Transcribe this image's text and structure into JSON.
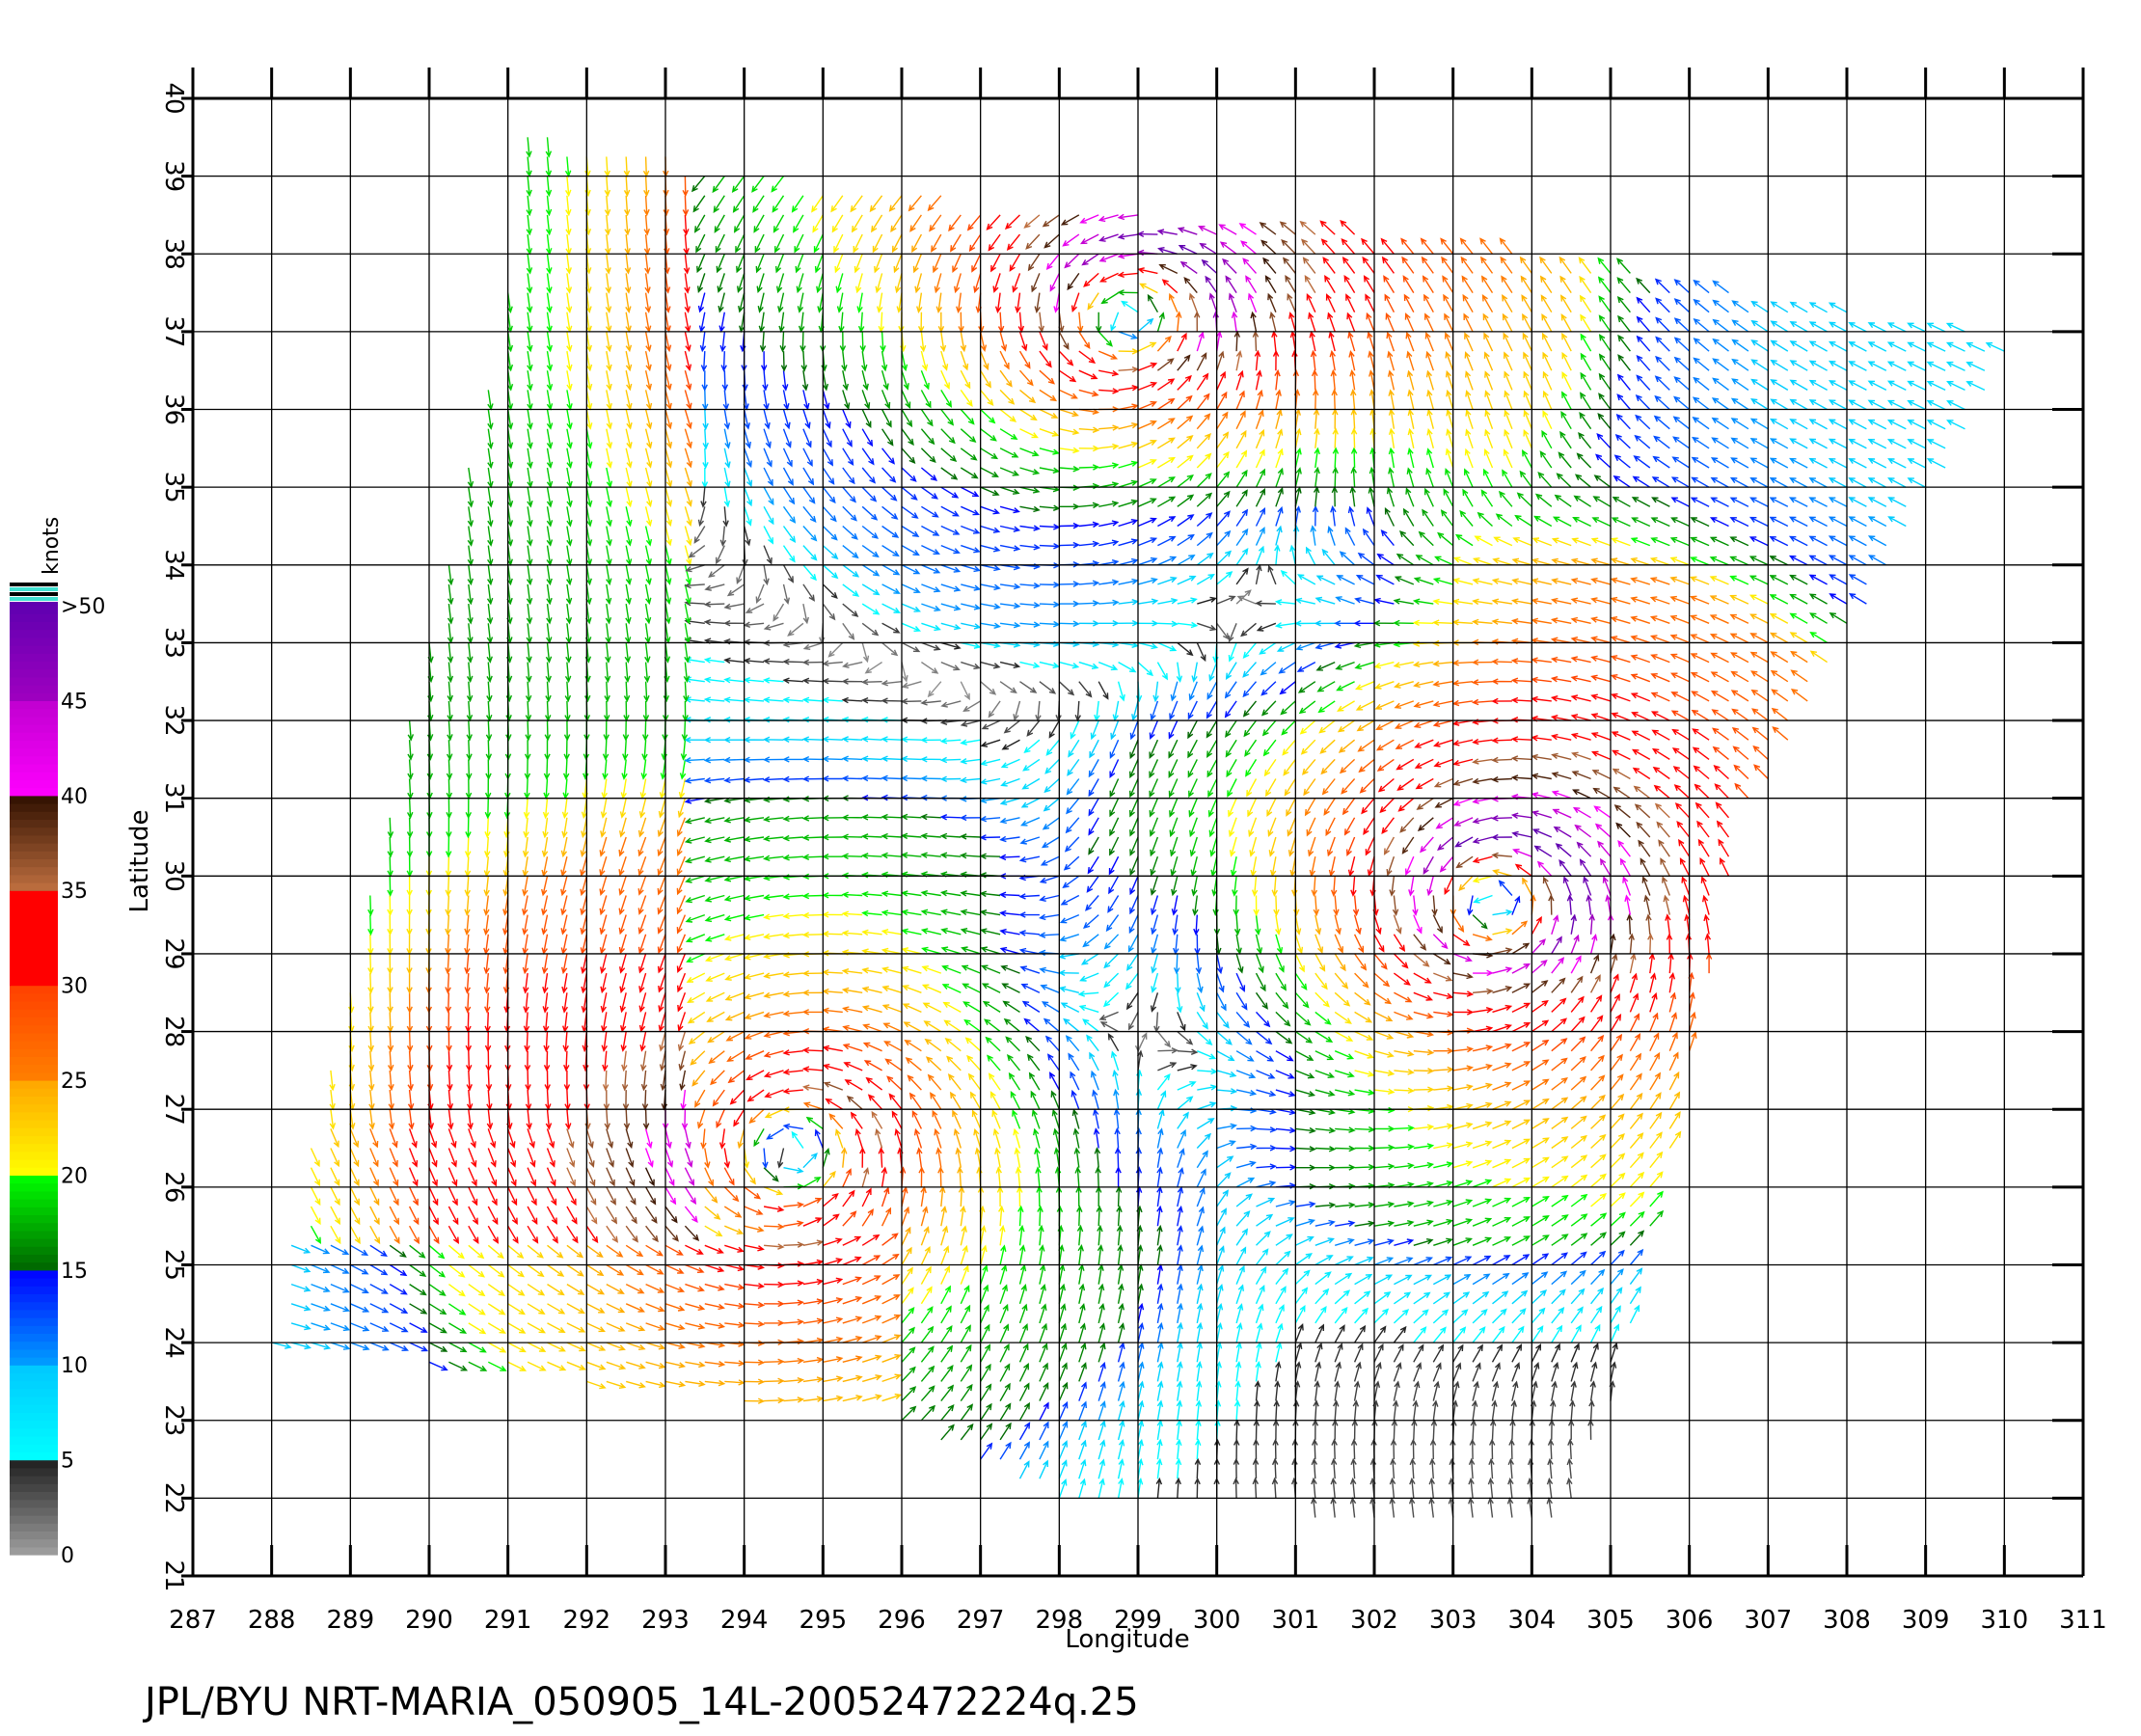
{
  "caption": "JPL/BYU  NRT-MARIA_050905_14L-20052472224q.25",
  "chart_data": {
    "type": "vector-field",
    "xlabel": "Longitude",
    "ylabel": "Latitude",
    "xlim": [
      287,
      311
    ],
    "ylim": [
      21,
      40
    ],
    "x_ticks": [
      "287",
      "288",
      "289",
      "290",
      "291",
      "292",
      "293",
      "294",
      "295",
      "296",
      "297",
      "298",
      "299",
      "300",
      "301",
      "302",
      "303",
      "304",
      "305",
      "306",
      "307",
      "308",
      "309",
      "310",
      "311"
    ],
    "y_ticks": [
      "21",
      "22",
      "23",
      "24",
      "25",
      "26",
      "27",
      "28",
      "29",
      "30",
      "31",
      "32",
      "33",
      "34",
      "35",
      "36",
      "37",
      "38",
      "39",
      "40"
    ],
    "grid": true,
    "swath_corners": [
      [
        291.1,
        39.6
      ],
      [
        295.2,
        38.9
      ],
      [
        303.3,
        38.1
      ],
      [
        310.2,
        36.9
      ],
      [
        306.7,
        30.7
      ],
      [
        305.0,
        23.1
      ],
      [
        304.3,
        21.5
      ],
      [
        298.0,
        22.0
      ],
      [
        296.0,
        23.0
      ],
      [
        288.0,
        24.0
      ],
      [
        288.5,
        26.5
      ],
      [
        291.0,
        37.5
      ]
    ],
    "storm_centers": [
      {
        "lon": 303.6,
        "lat": 29.7,
        "max_knots": 50
      },
      {
        "lon": 294.7,
        "lat": 26.5,
        "max_knots": 35
      },
      {
        "lon": 299.0,
        "lat": 37.3,
        "max_knots": 45
      }
    ],
    "colorbar": {
      "title": "knots",
      "labels": [
        "0",
        "5",
        "10",
        "15",
        "20",
        "25",
        "30",
        "35",
        "40",
        "45",
        ">50"
      ],
      "bands": [
        {
          "from": 0,
          "to": 5,
          "colors": [
            "#a0a0a0",
            "#202020"
          ]
        },
        {
          "from": 5,
          "to": 10,
          "colors": [
            "#00ffff",
            "#00c8ff"
          ]
        },
        {
          "from": 10,
          "to": 15,
          "colors": [
            "#00a0ff",
            "#0000ff"
          ]
        },
        {
          "from": 15,
          "to": 20,
          "colors": [
            "#006400",
            "#00ff00"
          ]
        },
        {
          "from": 20,
          "to": 25,
          "colors": [
            "#ffff00",
            "#ffa500"
          ]
        },
        {
          "from": 25,
          "to": 30,
          "colors": [
            "#ff8000",
            "#ff4000"
          ]
        },
        {
          "from": 30,
          "to": 35,
          "colors": [
            "#ff0000",
            "#ff0000"
          ]
        },
        {
          "from": 35,
          "to": 40,
          "colors": [
            "#c07040",
            "#301000"
          ]
        },
        {
          "from": 40,
          "to": 45,
          "colors": [
            "#ff00ff",
            "#c000d0"
          ]
        },
        {
          "from": 45,
          "to": 50,
          "colors": [
            "#a000c0",
            "#6000b0"
          ]
        }
      ]
    }
  }
}
